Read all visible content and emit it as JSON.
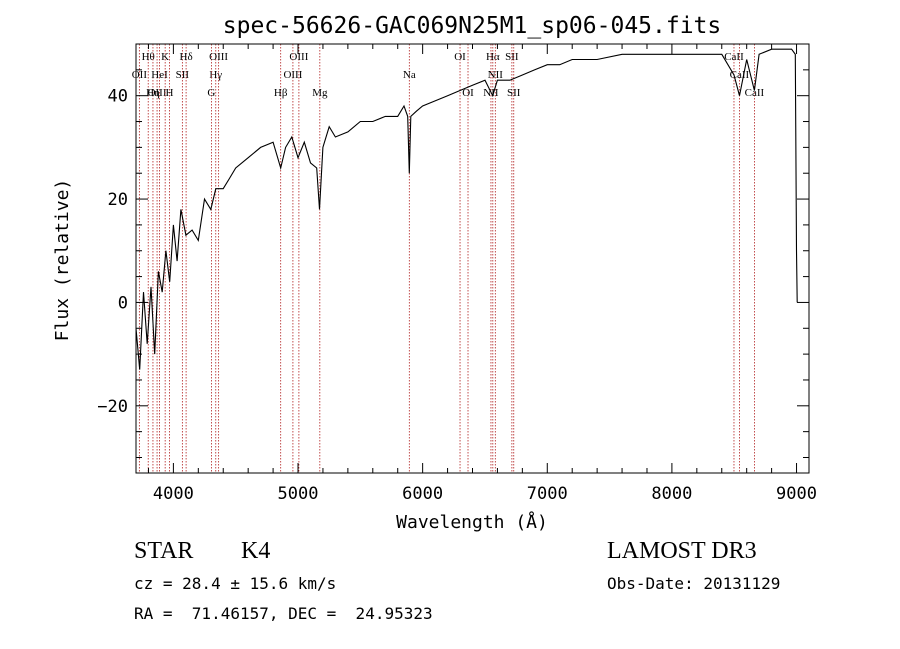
{
  "chart_data": {
    "type": "line",
    "title": "spec-56626-GAC069N25M1_sp06-045.fits",
    "xlabel": "Wavelength (Å)",
    "ylabel": "Flux (relative)",
    "xlim": [
      3700,
      9100
    ],
    "ylim": [
      -33,
      50
    ],
    "x_ticks": [
      4000,
      5000,
      6000,
      7000,
      8000,
      9000
    ],
    "x_tick_labels": [
      "4000",
      "5000",
      "6000",
      "7000",
      "8000",
      "9000"
    ],
    "y_ticks": [
      -20,
      0,
      20,
      40
    ],
    "y_tick_labels": [
      "−20",
      "0",
      "20",
      "40"
    ],
    "series": [
      {
        "name": "flux",
        "x": [
          3700,
          3730,
          3760,
          3790,
          3820,
          3850,
          3880,
          3910,
          3940,
          3970,
          4000,
          4030,
          4060,
          4100,
          4150,
          4200,
          4250,
          4300,
          4340,
          4400,
          4450,
          4500,
          4600,
          4700,
          4800,
          4861,
          4900,
          4950,
          5000,
          5050,
          5100,
          5150,
          5172,
          5200,
          5250,
          5300,
          5400,
          5500,
          5600,
          5700,
          5800,
          5850,
          5880,
          5893,
          5905,
          5950,
          6000,
          6100,
          6200,
          6300,
          6400,
          6500,
          6562,
          6600,
          6700,
          6800,
          6900,
          7000,
          7100,
          7200,
          7400,
          7600,
          7800,
          8000,
          8200,
          8400,
          8498,
          8542,
          8600,
          8662,
          8700,
          8800,
          8900,
          8960,
          8990,
          9000,
          9005
        ],
        "y": [
          -5,
          -13,
          2,
          -8,
          3,
          -10,
          6,
          2,
          10,
          4,
          15,
          8,
          18,
          13,
          14,
          12,
          20,
          18,
          22,
          22,
          24,
          26,
          28,
          30,
          31,
          26,
          30,
          32,
          28,
          31,
          27,
          26,
          18,
          30,
          34,
          32,
          33,
          35,
          35,
          36,
          36,
          38,
          36,
          25,
          36,
          37,
          38,
          39,
          40,
          41,
          42,
          43,
          40,
          43,
          43,
          44,
          45,
          46,
          46,
          47,
          47,
          48,
          48,
          48,
          48,
          48,
          44,
          40,
          47,
          41,
          48,
          49,
          49,
          49,
          48,
          10,
          0
        ]
      }
    ],
    "line_markers": [
      {
        "label": "Hθ",
        "wavelength": 3798,
        "row": 0
      },
      {
        "label": "OII",
        "wavelength": 3727,
        "row": 1
      },
      {
        "label": "Hη",
        "wavelength": 3836,
        "row": 2
      },
      {
        "label": "OIII",
        "wavelength": 3869,
        "row": 2
      },
      {
        "label": "HeI",
        "wavelength": 3889,
        "row": 1
      },
      {
        "label": "K",
        "wavelength": 3934,
        "row": 0
      },
      {
        "label": "H",
        "wavelength": 3969,
        "row": 2
      },
      {
        "label": "SII",
        "wavelength": 4072,
        "row": 1
      },
      {
        "label": "Hδ",
        "wavelength": 4102,
        "row": 0
      },
      {
        "label": "Hγ",
        "wavelength": 4340,
        "row": 1
      },
      {
        "label": "G",
        "wavelength": 4305,
        "row": 2
      },
      {
        "label": "OIII",
        "wavelength": 4363,
        "row": 0
      },
      {
        "label": "Hβ",
        "wavelength": 4861,
        "row": 2
      },
      {
        "label": "OIII",
        "wavelength": 4959,
        "row": 1
      },
      {
        "label": "OIII",
        "wavelength": 5007,
        "row": 0
      },
      {
        "label": "Mg",
        "wavelength": 5175,
        "row": 2
      },
      {
        "label": "Na",
        "wavelength": 5893,
        "row": 1
      },
      {
        "label": "OI",
        "wavelength": 6300,
        "row": 0
      },
      {
        "label": "OI",
        "wavelength": 6364,
        "row": 2
      },
      {
        "label": "Hα",
        "wavelength": 6563,
        "row": 0
      },
      {
        "label": "NII",
        "wavelength": 6548,
        "row": 2
      },
      {
        "label": "NII",
        "wavelength": 6583,
        "row": 1
      },
      {
        "label": "SII",
        "wavelength": 6716,
        "row": 0
      },
      {
        "label": "SII",
        "wavelength": 6731,
        "row": 2
      },
      {
        "label": "CaII",
        "wavelength": 8498,
        "row": 0
      },
      {
        "label": "CaII",
        "wavelength": 8542,
        "row": 1
      },
      {
        "label": "CaII",
        "wavelength": 8662,
        "row": 2
      }
    ],
    "colors": {
      "spectrum": "#000000",
      "line_markers": "#b22222",
      "axes": "#000000"
    }
  },
  "info": {
    "object_class": "STAR",
    "subclass": "K4",
    "survey": "LAMOST DR3",
    "redshift": "cz = 28.4 ± 15.6 km/s",
    "obs_date": "Obs-Date: 20131129",
    "coordinates": "RA =  71.46157, DEC =  24.95323"
  }
}
